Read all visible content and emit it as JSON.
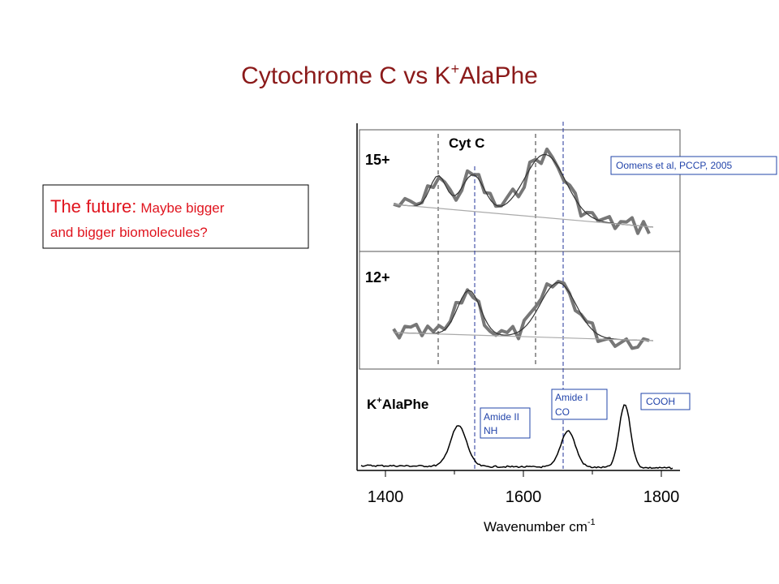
{
  "title": {
    "text": "Cytochrome C vs K",
    "sup": "+",
    "rest": "AlaPhe"
  },
  "callout": {
    "lead": "The future:",
    "lines": [
      "Maybe bigger",
      "and bigger biomolecules?"
    ]
  },
  "figure": {
    "panels": [
      "15+",
      "12+"
    ],
    "cyt_label": "Cyt C",
    "mol_label": {
      "text": "K",
      "sup": "+",
      "rest": "AlaPhe"
    },
    "citation": "Oomens et al, PCCP, 2005",
    "annotations": [
      {
        "lines": [
          "Amide II",
          "NH"
        ]
      },
      {
        "lines": [
          "Amide I",
          "CO"
        ]
      },
      {
        "lines": [
          "COOH"
        ]
      }
    ],
    "xticks": [
      "1400",
      "1600",
      "1800"
    ],
    "xlabel": {
      "text": "Wavenumber  cm",
      "sup": "-1"
    }
  }
}
